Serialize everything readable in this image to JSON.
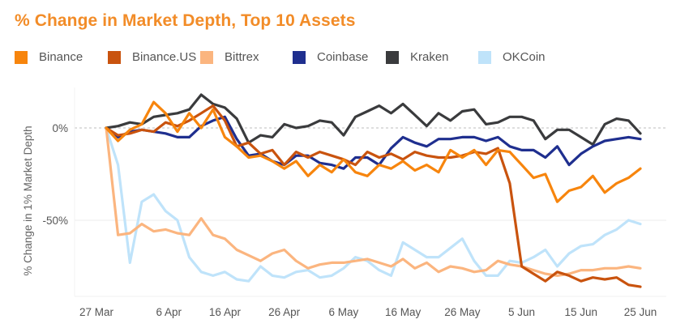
{
  "chart_data": {
    "type": "line",
    "title": "% Change in Market Depth, Top 10 Assets",
    "xlabel": "",
    "ylabel": "% Change in 1% Market Depth",
    "x_ticks": [
      {
        "day": 0,
        "label": "27 Mar"
      },
      {
        "day": 10,
        "label": "6 Apr"
      },
      {
        "day": 20,
        "label": "16 Apr"
      },
      {
        "day": 30,
        "label": "26 Apr"
      },
      {
        "day": 40,
        "label": "6 May"
      },
      {
        "day": 50,
        "label": "16 May"
      },
      {
        "day": 60,
        "label": "26 May"
      },
      {
        "day": 70,
        "label": "5 Jun"
      },
      {
        "day": 80,
        "label": "15 Jun"
      },
      {
        "day": 90,
        "label": "25 Jun"
      }
    ],
    "y_ticks": [
      {
        "value": 0,
        "label": "0%"
      },
      {
        "value": -50,
        "label": "-50%"
      }
    ],
    "xlim": [
      0,
      90
    ],
    "ylim": [
      -90,
      20
    ],
    "grid": "horizontal",
    "legend_position": "top",
    "x_days": [
      0,
      2,
      4,
      6,
      8,
      10,
      12,
      14,
      16,
      18,
      20,
      22,
      24,
      26,
      28,
      30,
      32,
      34,
      36,
      38,
      40,
      42,
      44,
      46,
      48,
      50,
      52,
      54,
      56,
      58,
      60,
      62,
      64,
      66,
      68,
      70,
      72,
      74,
      76,
      78,
      80,
      82,
      84,
      86,
      88,
      90
    ],
    "series": [
      {
        "name": "Binance",
        "color": "#f7850d",
        "values": [
          0,
          -7,
          -1,
          2,
          14,
          8,
          -2,
          8,
          0,
          10,
          -5,
          -10,
          -16,
          -15,
          -18,
          -22,
          -18,
          -26,
          -20,
          -24,
          -17,
          -24,
          -26,
          -20,
          -22,
          -18,
          -23,
          -20,
          -24,
          -12,
          -16,
          -12,
          -20,
          -12,
          -13,
          -20,
          -27,
          -25,
          -40,
          -34,
          -32,
          -26,
          -35,
          -30,
          -27,
          -22
        ]
      },
      {
        "name": "Binance.US",
        "color": "#c9530e",
        "values": [
          0,
          -4,
          -3,
          -1,
          -2,
          3,
          1,
          4,
          8,
          12,
          4,
          -10,
          -8,
          -14,
          -12,
          -20,
          -13,
          -16,
          -13,
          -15,
          -17,
          -20,
          -13,
          -16,
          -14,
          -17,
          -13,
          -15,
          -16,
          -16,
          -15,
          -13,
          -14,
          -11,
          -30,
          -75,
          -79,
          -83,
          -78,
          -80,
          -83,
          -81,
          -82,
          -81,
          -85,
          -86
        ]
      },
      {
        "name": "Bittrex",
        "color": "#fbb57f",
        "values": [
          0,
          -58,
          -57,
          -52,
          -56,
          -55,
          -57,
          -58,
          -49,
          -58,
          -60,
          -66,
          -69,
          -72,
          -68,
          -66,
          -72,
          -76,
          -74,
          -73,
          -73,
          -72,
          -71,
          -73,
          -75,
          -71,
          -76,
          -73,
          -78,
          -75,
          -76,
          -78,
          -77,
          -72,
          -74,
          -75,
          -77,
          -79,
          -80,
          -79,
          -77,
          -77,
          -76,
          -76,
          -75,
          -76
        ]
      },
      {
        "name": "Coinbase",
        "color": "#1f2f8f",
        "values": [
          0,
          -5,
          -2,
          -1,
          -2,
          -3,
          -5,
          -5,
          1,
          4,
          6,
          -6,
          -15,
          -14,
          -18,
          -20,
          -15,
          -15,
          -19,
          -20,
          -22,
          -16,
          -16,
          -20,
          -11,
          -5,
          -8,
          -10,
          -6,
          -6,
          -5,
          -5,
          -7,
          -5,
          -10,
          -12,
          -12,
          -16,
          -10,
          -20,
          -14,
          -10,
          -7,
          -6,
          -5,
          -6
        ]
      },
      {
        "name": "Kraken",
        "color": "#3a3b3d",
        "values": [
          0,
          1,
          3,
          2,
          6,
          7,
          8,
          10,
          18,
          13,
          11,
          5,
          -8,
          -4,
          -5,
          2,
          0,
          1,
          4,
          3,
          -4,
          6,
          9,
          12,
          8,
          13,
          7,
          1,
          8,
          4,
          9,
          10,
          2,
          3,
          6,
          6,
          4,
          -6,
          -1,
          -1,
          -5,
          -9,
          2,
          5,
          4,
          -3
        ]
      },
      {
        "name": "OKCoin",
        "color": "#bfe3fa",
        "values": [
          0,
          -20,
          -73,
          -40,
          -36,
          -45,
          -50,
          -70,
          -78,
          -80,
          -78,
          -82,
          -83,
          -75,
          -80,
          -81,
          -78,
          -77,
          -81,
          -80,
          -76,
          -70,
          -72,
          -77,
          -80,
          -62,
          -66,
          -70,
          -70,
          -65,
          -60,
          -72,
          -80,
          -80,
          -72,
          -73,
          -70,
          -66,
          -75,
          -68,
          -64,
          -63,
          -58,
          -55,
          -50,
          -52
        ]
      }
    ]
  }
}
